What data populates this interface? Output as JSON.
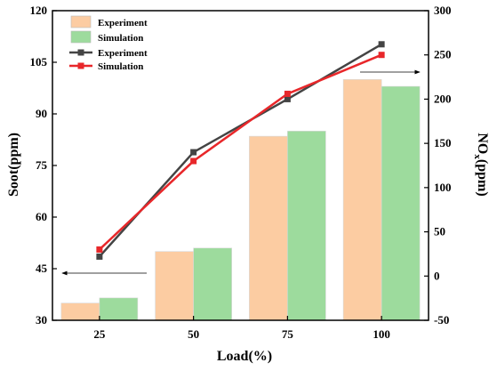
{
  "chart_data": {
    "type": "bar",
    "xlabel": "Load(%)",
    "ylabel_left": "Soot(ppm)",
    "ylabel_right": "NO",
    "ylabel_right_sub": "x",
    "ylabel_right_unit": "(ppm)",
    "categories": [
      "25",
      "50",
      "75",
      "100"
    ],
    "ylim_left": [
      30,
      120
    ],
    "yticks_left": [
      "30",
      "45",
      "60",
      "75",
      "90",
      "105",
      "120"
    ],
    "ylim_right": [
      -50,
      300
    ],
    "yticks_right": [
      "-50",
      "0",
      "50",
      "100",
      "150",
      "200",
      "250",
      "300"
    ],
    "bar_series": [
      {
        "name": "Experiment",
        "axis": "left",
        "values": [
          35.0,
          50.0,
          83.5,
          100.0
        ],
        "color": "#FCCCA2"
      },
      {
        "name": "Simulation",
        "axis": "left",
        "values": [
          36.5,
          51.0,
          85.0,
          98.0
        ],
        "color": "#9DDB9D"
      }
    ],
    "line_series": [
      {
        "name": "Experiment",
        "axis": "right",
        "values": [
          22,
          140,
          200,
          262
        ],
        "color": "#444444"
      },
      {
        "name": "Simulation",
        "axis": "right",
        "values": [
          30,
          130,
          206,
          250
        ],
        "color": "#E8272A"
      }
    ],
    "legend_placement": "top-left",
    "annotations": [
      {
        "type": "arrow",
        "direction": "left",
        "axis": "left"
      },
      {
        "type": "arrow",
        "direction": "right",
        "axis": "right"
      }
    ],
    "grid": false
  }
}
